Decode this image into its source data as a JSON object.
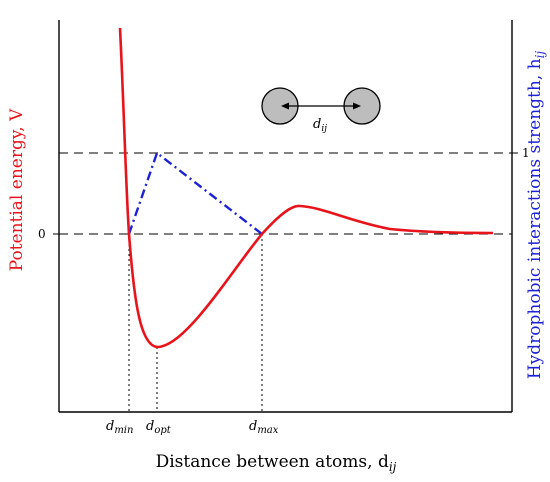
{
  "labels": {
    "left_axis_label": "Potential energy, V",
    "right_axis_label": "Hydrophobic interactions strength, h",
    "right_axis_subscript": "ij",
    "x_axis_label": "Distance between atoms, d",
    "x_axis_subscript": "ij",
    "left_tick_zero": "0",
    "right_tick_one": "1",
    "atoms_distance_label": "d",
    "atoms_distance_subscript": "ij",
    "d_min_base": "d",
    "d_min_sub": "min",
    "d_opt_base": "d",
    "d_opt_sub": "opt",
    "d_max_base": "d",
    "d_max_sub": "max"
  },
  "colors": {
    "potential_curve": "#e8141b",
    "hydrophobic_curve": "#1e22d6",
    "left_axis_label": "#e8141b",
    "right_axis_label": "#1e22d6",
    "axes": "#000000",
    "atom_fill": "#bdbdbd"
  }
}
